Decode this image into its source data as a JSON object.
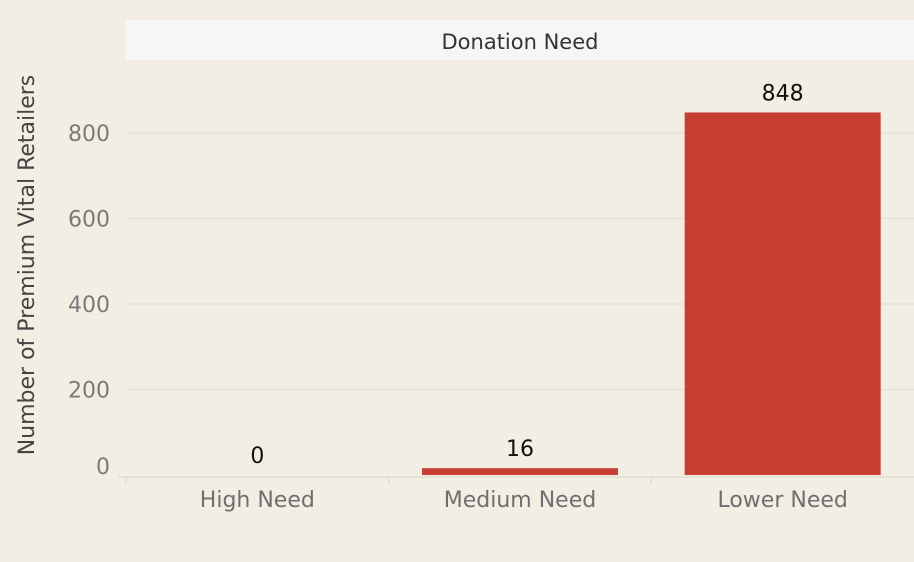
{
  "chart_data": {
    "type": "bar",
    "header": "Donation Need",
    "ylabel": "Number of Premium Vital Retailers",
    "xlabel": "",
    "categories": [
      "High Need",
      "Medium Need",
      "Lower Need"
    ],
    "values": [
      0,
      16,
      848
    ],
    "data_labels": [
      "0",
      "16",
      "848"
    ],
    "y_ticks": [
      0,
      200,
      400,
      600,
      800
    ],
    "y_tick_labels": [
      "0",
      "200",
      "400",
      "600",
      "800"
    ],
    "ylim": [
      0,
      900
    ],
    "grid": true,
    "bar_color": "#c83e33",
    "background_color": "#f2eee3",
    "header_color": "#f6f6f6"
  }
}
